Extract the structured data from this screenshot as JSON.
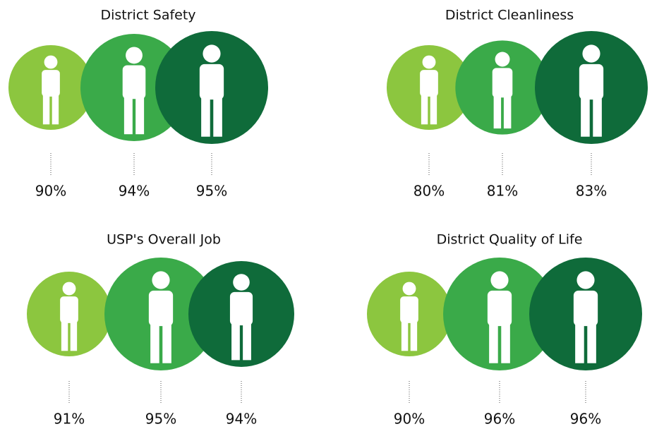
{
  "chart_data": [
    {
      "type": "bubble",
      "title": "District Safety",
      "values": [
        90,
        94,
        95
      ],
      "value_labels": [
        "90%",
        "94%",
        "95%"
      ],
      "colors": [
        "#8cc63f",
        "#3aaa49",
        "#0f6b3a"
      ]
    },
    {
      "type": "bubble",
      "title": "District Cleanliness",
      "values": [
        80,
        81,
        83
      ],
      "value_labels": [
        "80%",
        "81%",
        "83%"
      ],
      "colors": [
        "#8cc63f",
        "#3aaa49",
        "#0f6b3a"
      ]
    },
    {
      "type": "bubble",
      "title": "USP's Overall Job",
      "values": [
        91,
        95,
        94
      ],
      "value_labels": [
        "91%",
        "95%",
        "94%"
      ],
      "colors": [
        "#8cc63f",
        "#3aaa49",
        "#0f6b3a"
      ]
    },
    {
      "type": "bubble",
      "title": "District Quality of Life",
      "values": [
        90,
        96,
        96
      ],
      "value_labels": [
        "90%",
        "96%",
        "96%"
      ],
      "colors": [
        "#8cc63f",
        "#3aaa49",
        "#0f6b3a"
      ]
    }
  ]
}
